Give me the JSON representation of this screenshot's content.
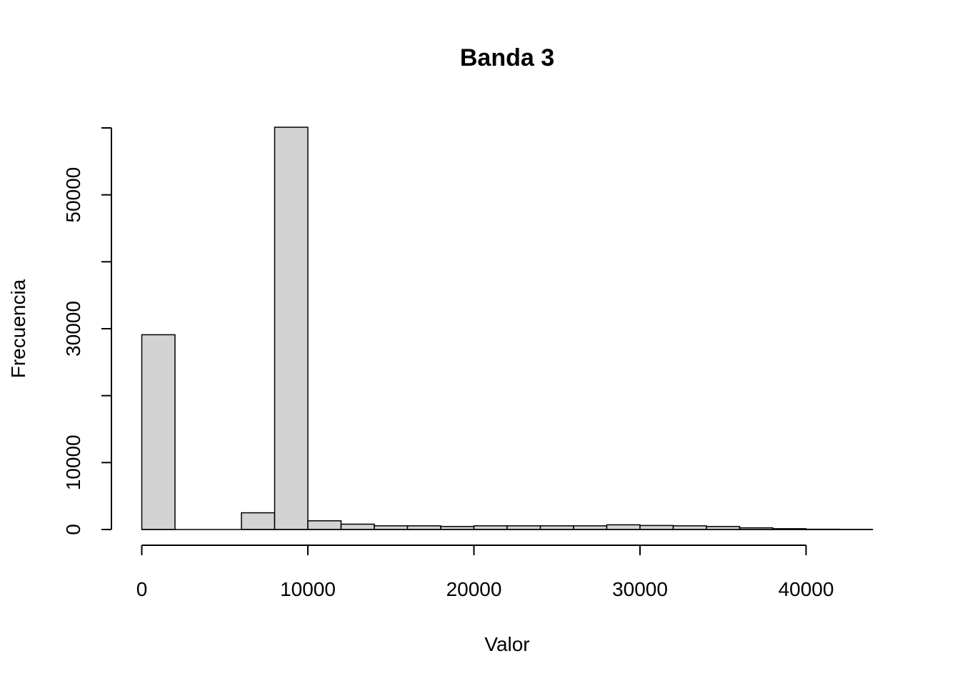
{
  "chart_data": {
    "type": "bar",
    "subtype": "histogram",
    "title": "Banda 3",
    "xlabel": "Valor",
    "ylabel": "Frecuencia",
    "xlim": [
      0,
      44000
    ],
    "ylim": [
      0,
      60000
    ],
    "x_ticks": [
      0,
      10000,
      20000,
      30000,
      40000
    ],
    "x_tick_labels": [
      "0",
      "10000",
      "20000",
      "30000",
      "40000"
    ],
    "y_ticks": [
      0,
      10000,
      20000,
      30000,
      40000,
      50000,
      60000
    ],
    "y_tick_labels": [
      "0",
      "10000",
      "",
      "30000",
      "",
      "50000",
      ""
    ],
    "bins": [
      {
        "x0": 0,
        "x1": 2000,
        "count": 29100
      },
      {
        "x0": 2000,
        "x1": 4000,
        "count": 0
      },
      {
        "x0": 4000,
        "x1": 6000,
        "count": 0
      },
      {
        "x0": 6000,
        "x1": 8000,
        "count": 2500
      },
      {
        "x0": 8000,
        "x1": 10000,
        "count": 60100
      },
      {
        "x0": 10000,
        "x1": 12000,
        "count": 1300
      },
      {
        "x0": 12000,
        "x1": 14000,
        "count": 800
      },
      {
        "x0": 14000,
        "x1": 16000,
        "count": 550
      },
      {
        "x0": 16000,
        "x1": 18000,
        "count": 550
      },
      {
        "x0": 18000,
        "x1": 20000,
        "count": 450
      },
      {
        "x0": 20000,
        "x1": 22000,
        "count": 550
      },
      {
        "x0": 22000,
        "x1": 24000,
        "count": 550
      },
      {
        "x0": 24000,
        "x1": 26000,
        "count": 550
      },
      {
        "x0": 26000,
        "x1": 28000,
        "count": 550
      },
      {
        "x0": 28000,
        "x1": 30000,
        "count": 700
      },
      {
        "x0": 30000,
        "x1": 32000,
        "count": 600
      },
      {
        "x0": 32000,
        "x1": 34000,
        "count": 550
      },
      {
        "x0": 34000,
        "x1": 36000,
        "count": 450
      },
      {
        "x0": 36000,
        "x1": 38000,
        "count": 250
      },
      {
        "x0": 38000,
        "x1": 40000,
        "count": 120
      },
      {
        "x0": 40000,
        "x1": 42000,
        "count": 40
      },
      {
        "x0": 42000,
        "x1": 44000,
        "count": 15
      }
    ],
    "bar_fill": "#d3d3d3",
    "bar_stroke": "#000000",
    "grid": false,
    "legend": "none"
  }
}
